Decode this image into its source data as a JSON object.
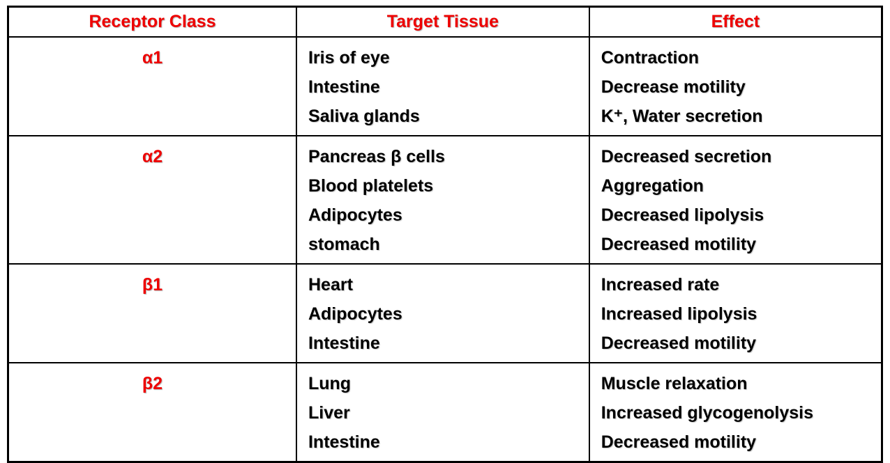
{
  "table": {
    "headers": [
      "Receptor Class",
      "Target Tissue",
      "Effect"
    ],
    "rows": [
      {
        "receptor": "α1",
        "tissues": [
          "Iris of eye",
          "Intestine",
          "Saliva glands"
        ],
        "effects": [
          "Contraction",
          "Decrease motility",
          "K⁺, Water secretion"
        ]
      },
      {
        "receptor": "α2",
        "tissues": [
          "Pancreas β cells",
          "Blood platelets",
          "Adipocytes",
          "stomach"
        ],
        "effects": [
          "Decreased secretion",
          "Aggregation",
          "Decreased lipolysis",
          "Decreased motility"
        ]
      },
      {
        "receptor": "β1",
        "tissues": [
          "Heart",
          "Adipocytes",
          "Intestine"
        ],
        "effects": [
          "Increased rate",
          "Increased lipolysis",
          "Decreased motility"
        ]
      },
      {
        "receptor": "β2",
        "tissues": [
          "Lung",
          "Liver",
          "Intestine"
        ],
        "effects": [
          "Muscle relaxation",
          "Increased glycogenolysis",
          "Decreased motility"
        ]
      }
    ],
    "colors": {
      "header_text": "#ee0000",
      "receptor_text": "#ee0000",
      "body_text": "#000000",
      "border": "#000000",
      "background": "#ffffff"
    }
  }
}
